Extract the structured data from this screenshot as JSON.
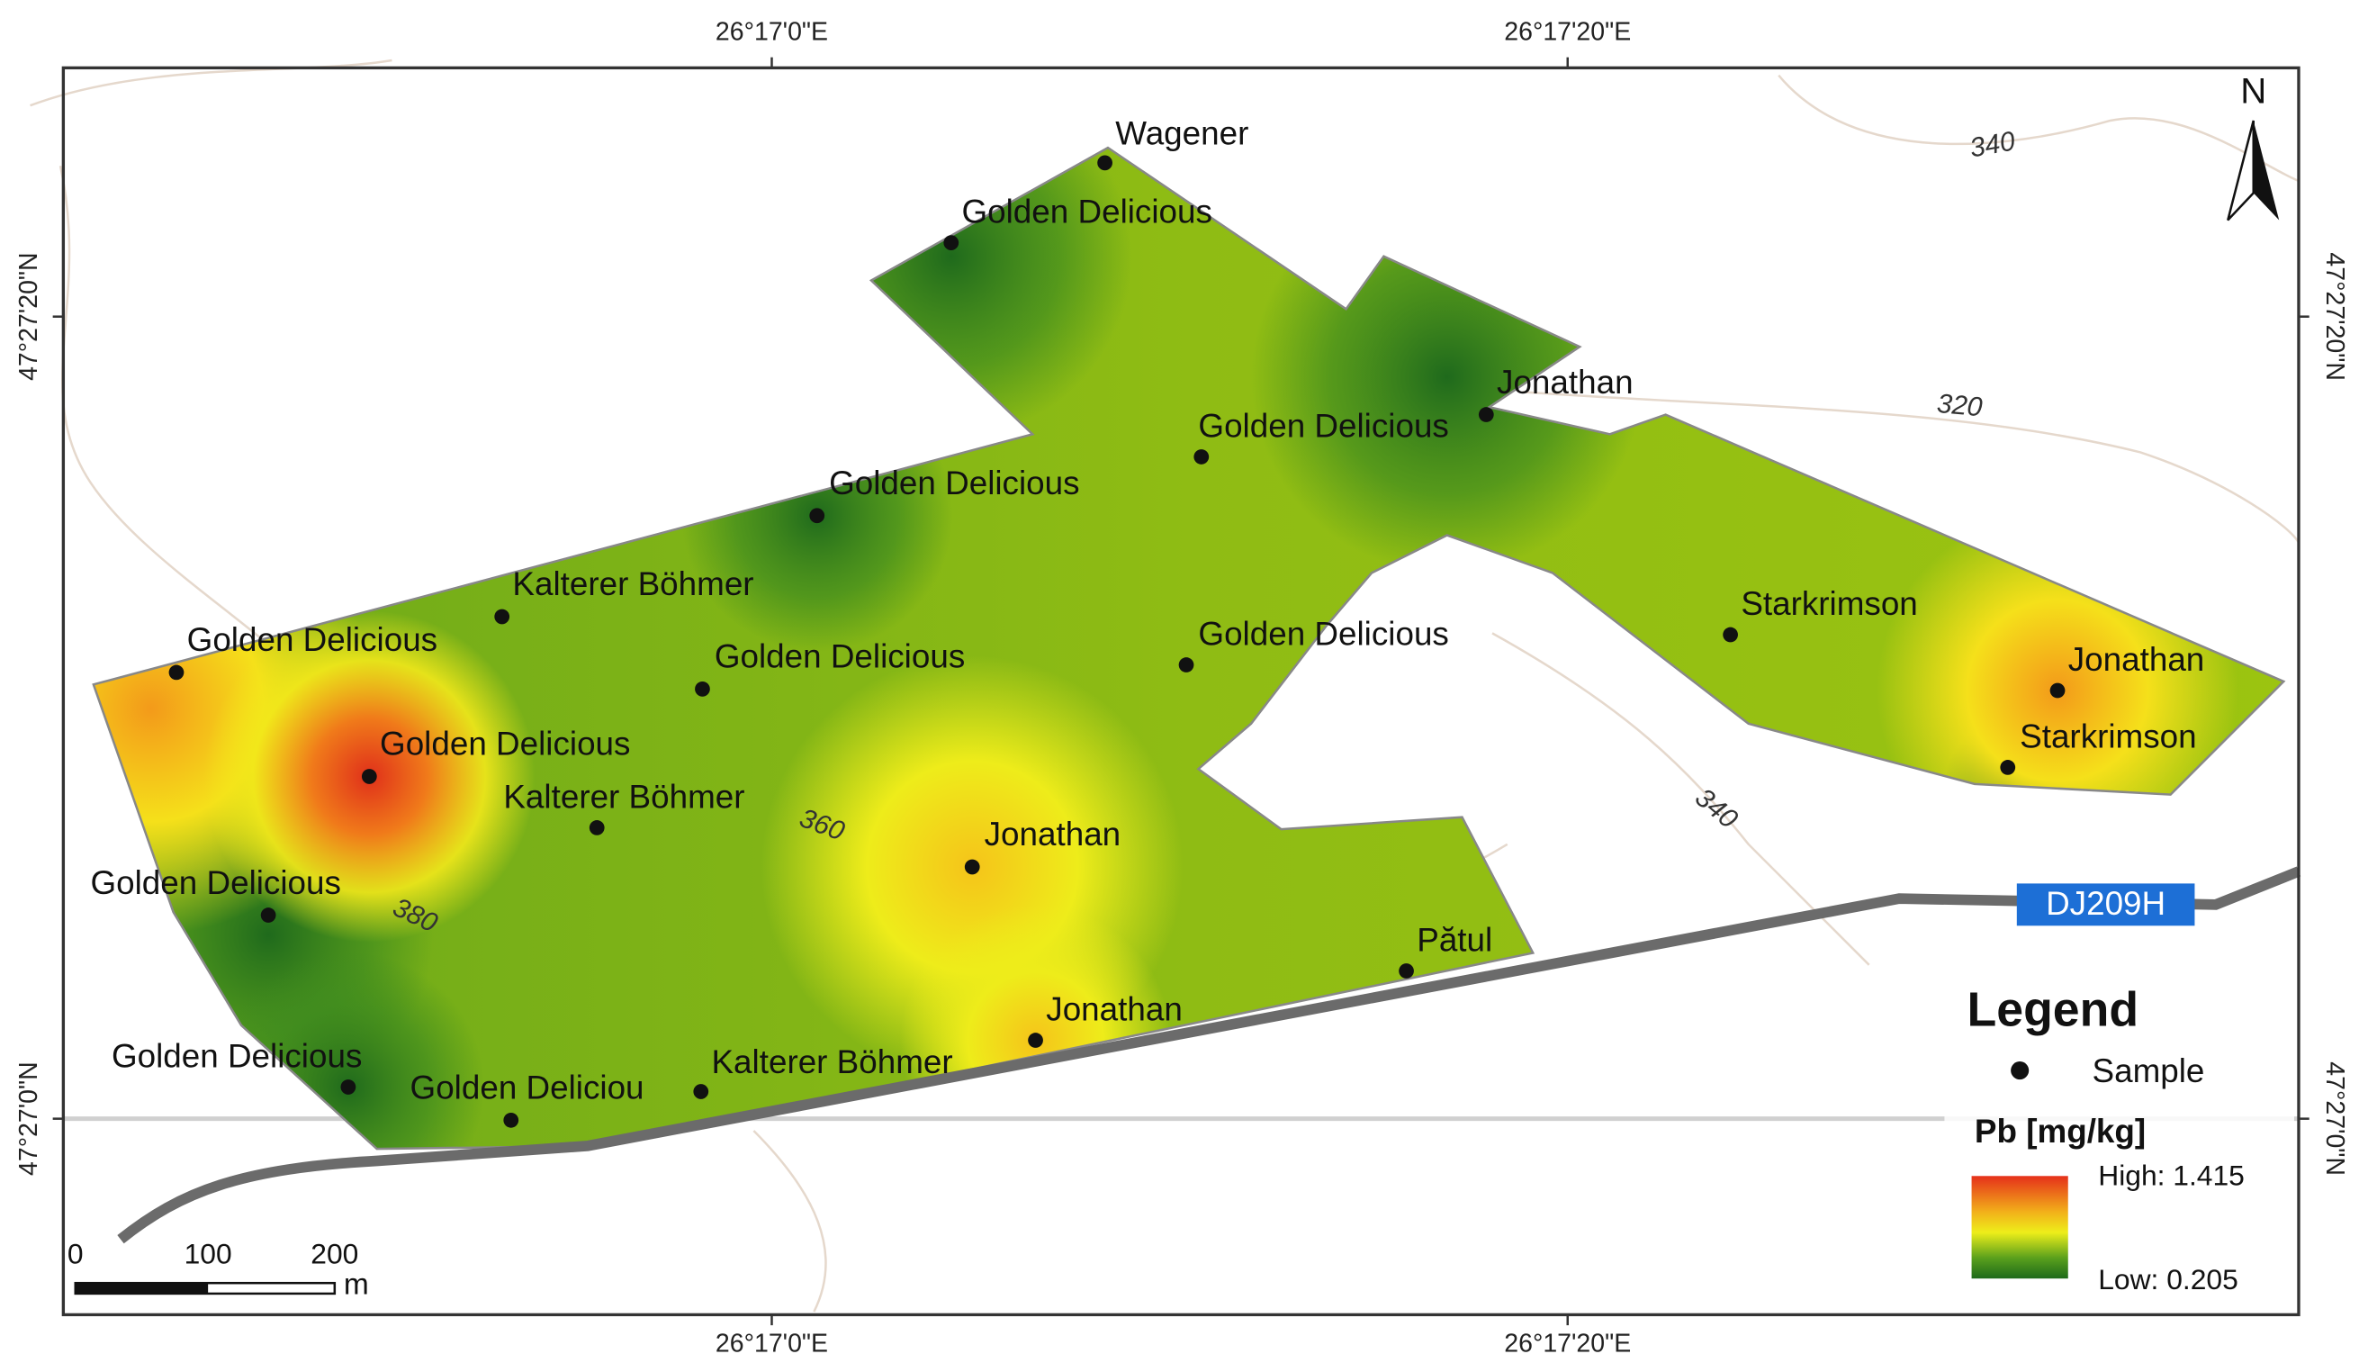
{
  "map": {
    "graticule": {
      "top": [
        "26°17'0\"E",
        "26°17'20\"E"
      ],
      "bottom": [
        "26°17'0\"E",
        "26°17'20\"E"
      ],
      "left": [
        "47°27'20\"N",
        "47°27'0\"N"
      ],
      "right": [
        "47°27'20\"N",
        "47°27'0\"N"
      ]
    },
    "north": "N",
    "contours": [
      "340",
      "320",
      "340",
      "360",
      "380"
    ],
    "road": "DJ209H",
    "samples": [
      "Wagener",
      "Golden Delicious",
      "Jonathan",
      "Golden Delicious",
      "Golden Delicious",
      "Kalterer Böhmer",
      "Golden Delicious",
      "Golden Delicious",
      "Golden Delicious",
      "Starkrimson",
      "Jonathan",
      "Starkrimson",
      "Golden Delicious",
      "Kalterer Böhmer",
      "Jonathan",
      "Golden Delicious",
      "Pătul",
      "Jonathan",
      "Golden Delicious",
      "Golden Deliciou",
      "Kalterer Böhmer"
    ],
    "scale_bar": {
      "ticks": [
        "0",
        "100",
        "200"
      ],
      "unit": "m"
    },
    "legend": {
      "title": "Legend",
      "sample": "Sample",
      "field": "Pb [mg/kg]",
      "high": "High: 1.415",
      "low": "Low: 0.205"
    }
  }
}
